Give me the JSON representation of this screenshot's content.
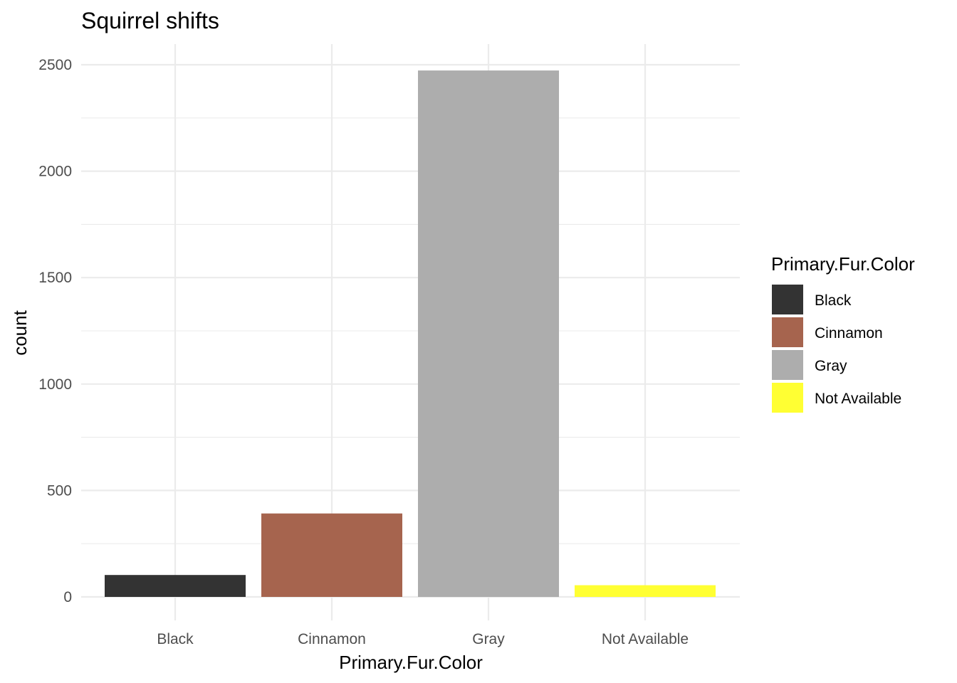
{
  "chart_data": {
    "type": "bar",
    "title": "Squirrel shifts",
    "xlabel": "Primary.Fur.Color",
    "ylabel": "count",
    "categories": [
      "Black",
      "Cinnamon",
      "Gray",
      "Not Available"
    ],
    "values": [
      103,
      392,
      2473,
      55
    ],
    "colors": [
      "#333333",
      "#a6644e",
      "#adadad",
      "#ffff33"
    ],
    "ylim": [
      -100,
      2600
    ],
    "yticks": [
      0,
      500,
      1000,
      1500,
      2000,
      2500
    ],
    "ytick_labels": [
      "0",
      "500",
      "1000",
      "1500",
      "2000",
      "2500"
    ],
    "grid": true,
    "legend": {
      "title": "Primary.Fur.Color",
      "position": "right",
      "entries": [
        "Black",
        "Cinnamon",
        "Gray",
        "Not Available"
      ]
    }
  }
}
